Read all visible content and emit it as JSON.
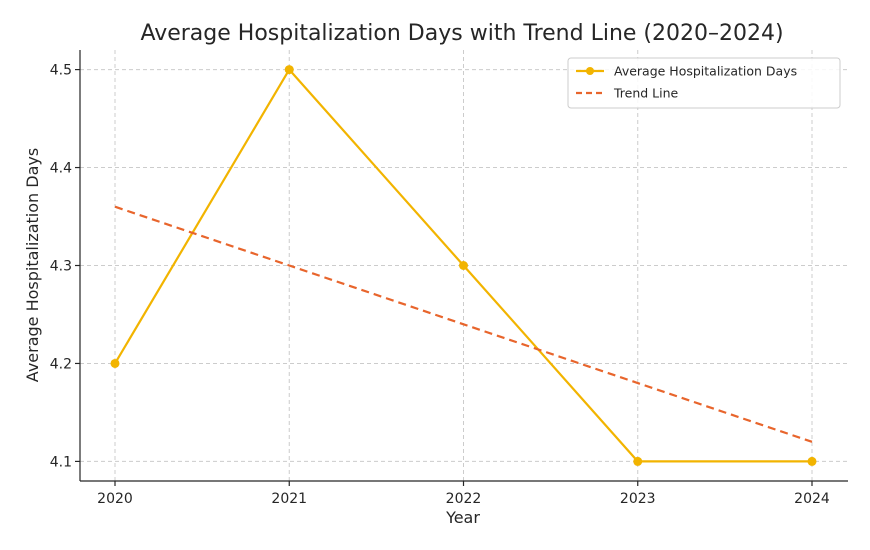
{
  "chart_data": {
    "type": "line",
    "title": "Average Hospitalization Days with Trend Line (2020–2024)",
    "xlabel": "Year",
    "ylabel": "Average Hospitalization Days",
    "categories": [
      "2020",
      "2021",
      "2022",
      "2023",
      "2024"
    ],
    "x": [
      2020,
      2021,
      2022,
      2023,
      2024
    ],
    "ylim": [
      4.08,
      4.52
    ],
    "yticks": [
      4.1,
      4.2,
      4.3,
      4.4,
      4.5
    ],
    "ytick_labels": [
      "4.1",
      "4.2",
      "4.3",
      "4.4",
      "4.5"
    ],
    "grid": true,
    "legend_position": "top-right",
    "series": [
      {
        "name": "Average Hospitalization Days",
        "values": [
          4.2,
          4.5,
          4.3,
          4.1,
          4.1
        ],
        "color": "#f2b400",
        "style": "solid",
        "marker": "circle"
      },
      {
        "name": "Trend Line",
        "values": [
          4.36,
          4.3,
          4.24,
          4.18,
          4.12
        ],
        "color": "#e8652c",
        "style": "dashed",
        "marker": "none"
      }
    ]
  }
}
